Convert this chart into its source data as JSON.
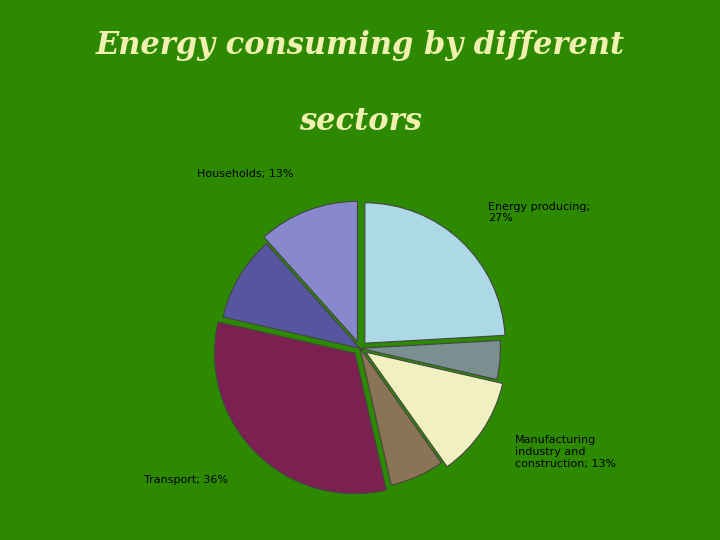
{
  "title_line1": "Energy consuming by different",
  "title_line2": "sectors",
  "title_color": "#f0f0b0",
  "background_color": "#2d8a00",
  "pie_bg_color": "#ffffff",
  "segments": [
    {
      "label": "Households; 13%",
      "value": 13,
      "color": "#8888cc"
    },
    {
      "label": "",
      "value": 11,
      "color": "#5555a0"
    },
    {
      "label": "Transport; 36%",
      "value": 36,
      "color": "#7b2050"
    },
    {
      "label": "",
      "value": 7,
      "color": "#8b7355"
    },
    {
      "label": "Manufacturing\nindustry and\nconstruction; 13%",
      "value": 13,
      "color": "#f0f0c0"
    },
    {
      "label": "",
      "value": 5,
      "color": "#7a9090"
    },
    {
      "label": "Energy producing;\n27%",
      "value": 27,
      "color": "#add8e6"
    }
  ],
  "explode": [
    0.05,
    0.0,
    0.05,
    0.0,
    0.05,
    0.0,
    0.05
  ],
  "label_fontsize": 8,
  "title_fontsize": 22,
  "startangle": 90
}
